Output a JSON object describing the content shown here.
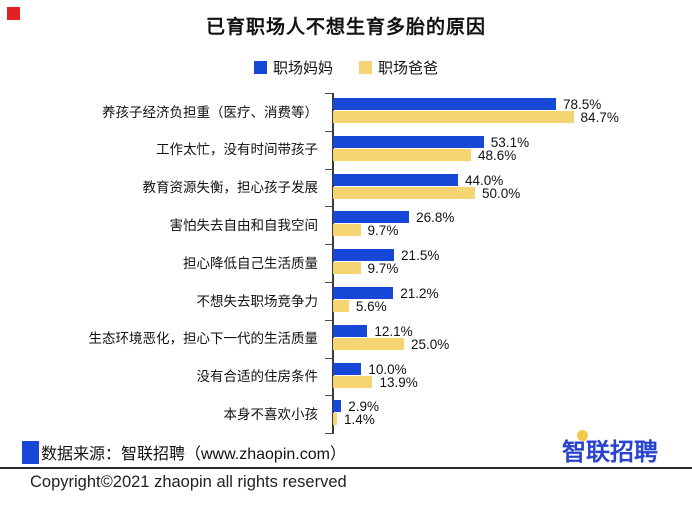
{
  "decoration": {
    "red_square_color": "#E02222"
  },
  "title": "已育职场人不想生育多胎的原因",
  "legend": {
    "items": [
      {
        "label": "职场妈妈",
        "color": "#1747D6"
      },
      {
        "label": "职场爸爸",
        "color": "#F5D572"
      }
    ]
  },
  "chart_data": {
    "type": "bar",
    "orientation": "horizontal",
    "title": "已育职场人不想生育多胎的原因",
    "categories": [
      "养孩子经济负担重（医疗、消费等）",
      "工作太忙，没有时间带孩子",
      "教育资源失衡，担心孩子发展",
      "害怕失去自由和自我空间",
      "担心降低自己生活质量",
      "不想失去职场竞争力",
      "生态环境恶化，担心下一代的生活质量",
      "没有合适的住房条件",
      "本身不喜欢小孩"
    ],
    "series": [
      {
        "name": "职场妈妈",
        "color": "#1747D6",
        "values": [
          78.5,
          53.1,
          44.0,
          26.8,
          21.5,
          21.2,
          12.1,
          10.0,
          2.9
        ]
      },
      {
        "name": "职场爸爸",
        "color": "#F5D572",
        "values": [
          84.7,
          48.6,
          50.0,
          9.7,
          9.7,
          5.6,
          25.0,
          13.9,
          1.4
        ]
      }
    ],
    "value_suffix": "%",
    "value_decimals": 1,
    "xlim": [
      0,
      100
    ],
    "grid": false,
    "value_labels": true,
    "legend_position": "top",
    "axis_color": "#3B3B3B"
  },
  "footer": {
    "source_square_color": "#1747D6",
    "source_text": "数据来源：智联招聘（www.zhaopin.com）",
    "copyright_text": "Copyright©2021 zhaopin all rights reserved",
    "logo_text": "智联招聘",
    "logo_color": "#2A43CF",
    "logo_dot_color": "#F2C94C"
  }
}
